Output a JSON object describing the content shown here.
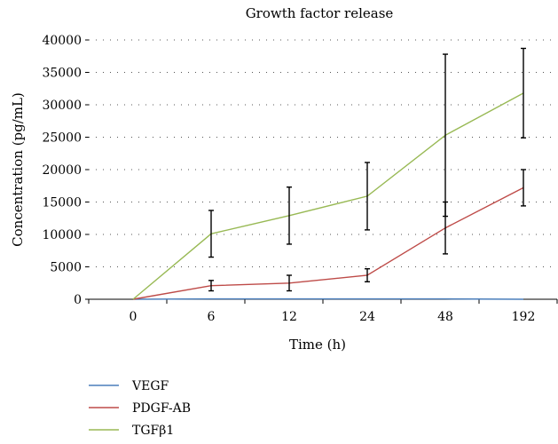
{
  "chart_data": {
    "type": "line",
    "title": "Growth factor release",
    "xlabel": "Time (h)",
    "ylabel": "Concentration (pg/mL)",
    "categories": [
      "0",
      "6",
      "12",
      "24",
      "48",
      "192"
    ],
    "ylim": [
      0,
      40000
    ],
    "yticks": [
      0,
      5000,
      10000,
      15000,
      20000,
      25000,
      30000,
      35000,
      40000
    ],
    "grid": "horizontal dotted",
    "legend_position": "bottom-left",
    "series": [
      {
        "name": "VEGF",
        "color": "#4a7ebb",
        "values": [
          0,
          50,
          50,
          50,
          50,
          0
        ],
        "errors": [
          0,
          0,
          0,
          0,
          0,
          0
        ]
      },
      {
        "name": "PDGF-AB",
        "color": "#be4b48",
        "values": [
          0,
          2100,
          2500,
          3700,
          11000,
          17200
        ],
        "errors": [
          0,
          800,
          1200,
          1000,
          4000,
          2800
        ]
      },
      {
        "name": "TGFβ1",
        "color": "#98b954",
        "values": [
          0,
          10100,
          12900,
          15900,
          25300,
          31800
        ],
        "errors": [
          0,
          3600,
          4400,
          5200,
          12500,
          6900
        ]
      }
    ]
  }
}
